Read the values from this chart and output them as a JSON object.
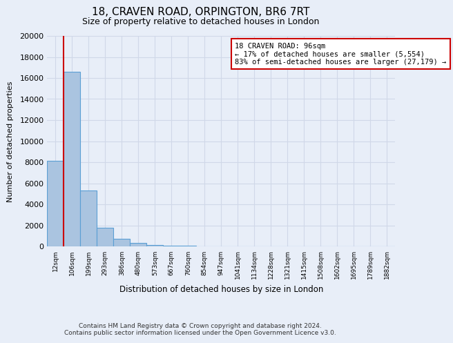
{
  "title": "18, CRAVEN ROAD, ORPINGTON, BR6 7RT",
  "subtitle": "Size of property relative to detached houses in London",
  "xlabel": "Distribution of detached houses by size in London",
  "ylabel": "Number of detached properties",
  "bar_labels": [
    "12sqm",
    "106sqm",
    "199sqm",
    "293sqm",
    "386sqm",
    "480sqm",
    "573sqm",
    "667sqm",
    "760sqm",
    "854sqm",
    "947sqm",
    "1041sqm",
    "1134sqm",
    "1228sqm",
    "1321sqm",
    "1415sqm",
    "1508sqm",
    "1602sqm",
    "1695sqm",
    "1789sqm",
    "1882sqm"
  ],
  "bar_values": [
    8100,
    16600,
    5300,
    1800,
    700,
    300,
    150,
    80,
    40,
    15,
    8,
    5,
    3,
    2,
    1,
    1,
    1,
    0,
    0,
    0,
    0
  ],
  "bar_color": "#aac4e0",
  "bar_edge_color": "#5a9fd4",
  "ylim": [
    0,
    20000
  ],
  "yticks": [
    0,
    2000,
    4000,
    6000,
    8000,
    10000,
    12000,
    14000,
    16000,
    18000,
    20000
  ],
  "property_line_color": "#cc0000",
  "annotation_title": "18 CRAVEN ROAD: 96sqm",
  "annotation_line1": "← 17% of detached houses are smaller (5,554)",
  "annotation_line2": "83% of semi-detached houses are larger (27,179) →",
  "annotation_box_color": "#ffffff",
  "annotation_box_edge": "#cc0000",
  "grid_color": "#d0d8e8",
  "background_color": "#e8eef8",
  "footer1": "Contains HM Land Registry data © Crown copyright and database right 2024.",
  "footer2": "Contains public sector information licensed under the Open Government Licence v3.0."
}
